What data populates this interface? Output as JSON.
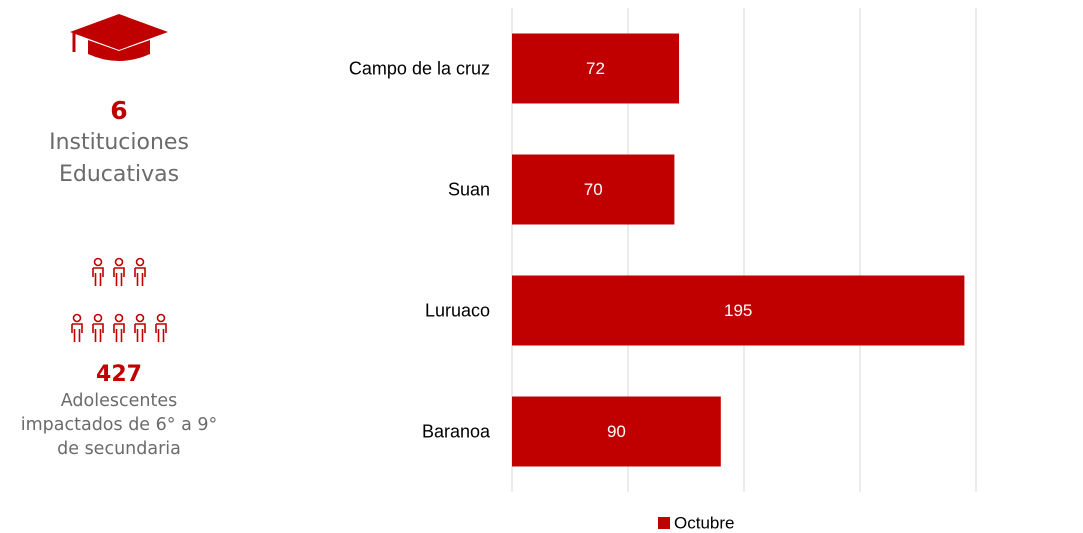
{
  "stats": [
    {
      "value": "6",
      "label": "Instituciones Educativas"
    },
    {
      "value": "427",
      "label": "Adolescentes impactados de 6° a 9° de secundaria"
    }
  ],
  "chart_data": {
    "type": "bar",
    "orientation": "horizontal",
    "categories": [
      "Campo de la cruz",
      "Suan",
      "Luruaco",
      "Baranoa"
    ],
    "series": [
      {
        "name": "Octubre",
        "color": "#c00000",
        "values": [
          72,
          70,
          195,
          90
        ]
      }
    ],
    "xlim": [
      0,
      200
    ],
    "xticks": [
      0,
      50,
      100,
      150,
      200
    ],
    "grid": true,
    "legend": "bottom"
  }
}
